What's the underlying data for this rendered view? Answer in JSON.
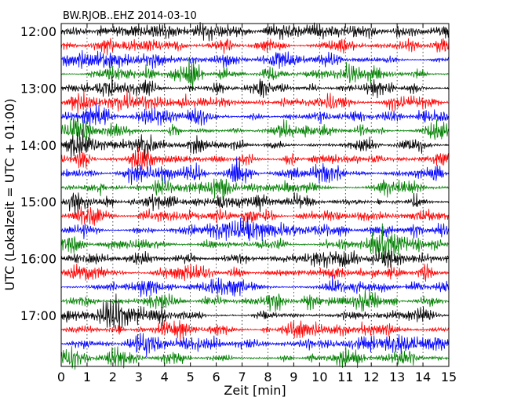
{
  "chart_data": {
    "type": "line",
    "title": "BW.RJOB..EHZ 2014-03-10",
    "xlabel": "Zeit  [min]",
    "ylabel": "UTC (Lokalzeit = UTC + 01:00)",
    "xlim": [
      0,
      15
    ],
    "x_ticks": [
      "0",
      "1",
      "2",
      "3",
      "4",
      "5",
      "6",
      "7",
      "8",
      "9",
      "10",
      "11",
      "12",
      "13",
      "14",
      "15"
    ],
    "y_tick_labels": [
      "12:00",
      "13:00",
      "14:00",
      "15:00",
      "16:00",
      "17:00"
    ],
    "trace_interval_min": 15,
    "trace_count": 24,
    "colors": [
      "#000000",
      "#ff0000",
      "#0000ff",
      "#008000"
    ],
    "grid": {
      "x": true,
      "y": false
    }
  }
}
